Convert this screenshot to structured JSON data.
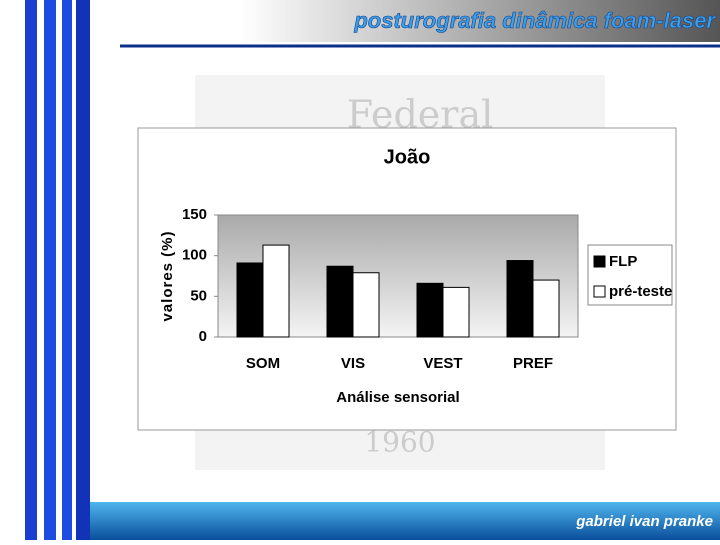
{
  "slide": {
    "title": "posturografia dinâmica foam-laser",
    "footer": "gabriel ivan pranke",
    "watermark_top": "Federal",
    "watermark_bottom": "1960"
  },
  "chart_data": {
    "type": "bar",
    "title": "João",
    "x_label": "Análise sensorial",
    "y_label": "valores (%)",
    "categories": [
      "SOM",
      "VIS",
      "VEST",
      "PREF"
    ],
    "series": [
      {
        "name": "FLP",
        "color": "#000000",
        "values": [
          91,
          87,
          66,
          94
        ]
      },
      {
        "name": "pré-teste",
        "color": "#ffffff",
        "values": [
          113,
          79,
          61,
          70
        ]
      }
    ],
    "ylim": [
      0,
      150
    ],
    "yticks": [
      0,
      50,
      100,
      150
    ],
    "legend": "right"
  }
}
